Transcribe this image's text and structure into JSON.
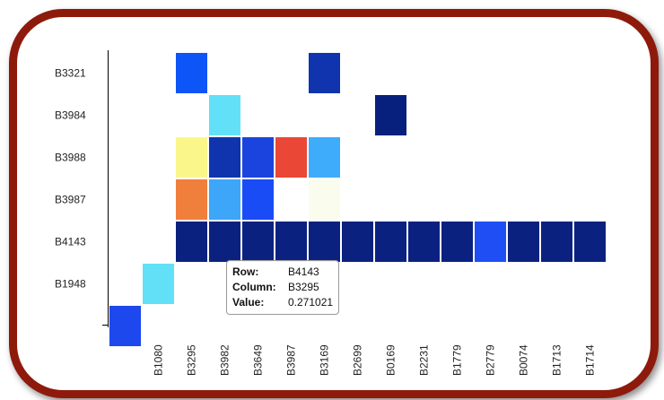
{
  "chart_data": {
    "type": "heatmap",
    "rows": [
      "B3321",
      "B3984",
      "B3988",
      "B3987",
      "B4143",
      "B1948",
      ""
    ],
    "columns": [
      "",
      "B1080",
      "B3295",
      "B3982",
      "B3649",
      "B3987",
      "B3169",
      "B2699",
      "B0169",
      "B2231",
      "B1779",
      "B2779",
      "B0074",
      "B1713",
      "B1714"
    ],
    "cells": [
      {
        "row": "B3321",
        "col": "B3295",
        "color": "#0d55f7"
      },
      {
        "row": "B3321",
        "col": "B3169",
        "color": "#0f34ad"
      },
      {
        "row": "B3984",
        "col": "B3982",
        "color": "#62e0f7"
      },
      {
        "row": "B3984",
        "col": "B0169",
        "color": "#08207d"
      },
      {
        "row": "B3988",
        "col": "B3295",
        "color": "#faf68a"
      },
      {
        "row": "B3988",
        "col": "B3982",
        "color": "#0f34ad"
      },
      {
        "row": "B3988",
        "col": "B3649",
        "color": "#1b44de"
      },
      {
        "row": "B3988",
        "col": "B3987",
        "color": "#ea4737"
      },
      {
        "row": "B3988",
        "col": "B3169",
        "color": "#3facfb"
      },
      {
        "row": "B3987",
        "col": "B3295",
        "color": "#f17f3c"
      },
      {
        "row": "B3987",
        "col": "B3982",
        "color": "#3da6f8"
      },
      {
        "row": "B3987",
        "col": "B3649",
        "color": "#1a4cf6"
      },
      {
        "row": "B3987",
        "col": "B3169",
        "color": "#fafdee"
      },
      {
        "row": "B4143",
        "col": "B3295",
        "color": "#0a2180"
      },
      {
        "row": "B4143",
        "col": "B3982",
        "color": "#0a2180"
      },
      {
        "row": "B4143",
        "col": "B3649",
        "color": "#0a2180"
      },
      {
        "row": "B4143",
        "col": "B3987",
        "color": "#0a2180"
      },
      {
        "row": "B4143",
        "col": "B3169",
        "color": "#0a2180"
      },
      {
        "row": "B4143",
        "col": "B2699",
        "color": "#0a2180"
      },
      {
        "row": "B4143",
        "col": "B0169",
        "color": "#0a2180"
      },
      {
        "row": "B4143",
        "col": "B2231",
        "color": "#0a2180"
      },
      {
        "row": "B4143",
        "col": "B1779",
        "color": "#0a2180"
      },
      {
        "row": "B4143",
        "col": "B2779",
        "color": "#1e4ef4"
      },
      {
        "row": "B4143",
        "col": "B0074",
        "color": "#0a2180"
      },
      {
        "row": "B4143",
        "col": "B1713",
        "color": "#0a2180"
      },
      {
        "row": "B4143",
        "col": "B1714",
        "color": "#0a2180"
      },
      {
        "row": "B1948",
        "col": "B1080",
        "color": "#62e0f7"
      },
      {
        "row": "",
        "col": "",
        "color": "#1d48ed"
      }
    ],
    "tooltip": {
      "row_label": "Row:",
      "row_value": "B4143",
      "column_label": "Column:",
      "column_value": "B3295",
      "value_label": "Value:",
      "value_value": "0.271021"
    }
  },
  "colors": {
    "frame_border": "#8e1a0c",
    "axis": "#000000"
  }
}
